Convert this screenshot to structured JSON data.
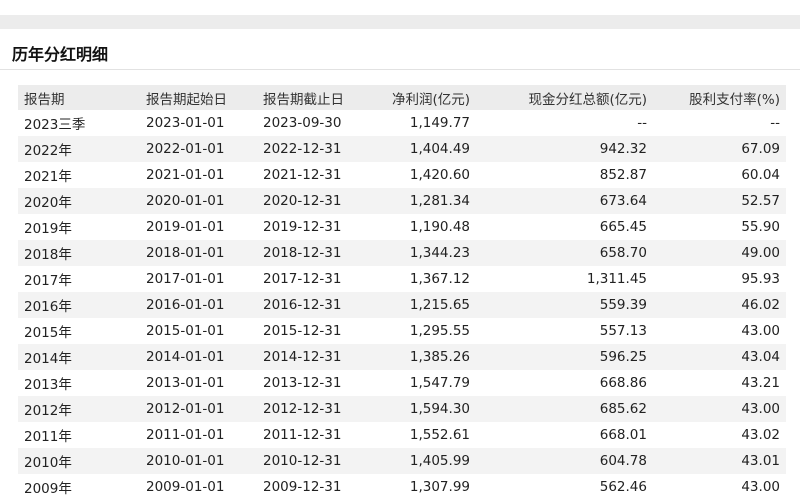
{
  "section_title": "历年分红明细",
  "table": {
    "headers": [
      "报告期",
      "报告期起始日",
      "报告期截止日",
      "净利润(亿元)",
      "现金分红总额(亿元)",
      "股利支付率(%)"
    ],
    "rows": [
      [
        "2023三季",
        "2023-01-01",
        "2023-09-30",
        "1,149.77",
        "--",
        "--"
      ],
      [
        "2022年",
        "2022-01-01",
        "2022-12-31",
        "1,404.49",
        "942.32",
        "67.09"
      ],
      [
        "2021年",
        "2021-01-01",
        "2021-12-31",
        "1,420.60",
        "852.87",
        "60.04"
      ],
      [
        "2020年",
        "2020-01-01",
        "2020-12-31",
        "1,281.34",
        "673.64",
        "52.57"
      ],
      [
        "2019年",
        "2019-01-01",
        "2019-12-31",
        "1,190.48",
        "665.45",
        "55.90"
      ],
      [
        "2018年",
        "2018-01-01",
        "2018-12-31",
        "1,344.23",
        "658.70",
        "49.00"
      ],
      [
        "2017年",
        "2017-01-01",
        "2017-12-31",
        "1,367.12",
        "1,311.45",
        "95.93"
      ],
      [
        "2016年",
        "2016-01-01",
        "2016-12-31",
        "1,215.65",
        "559.39",
        "46.02"
      ],
      [
        "2015年",
        "2015-01-01",
        "2015-12-31",
        "1,295.55",
        "557.13",
        "43.00"
      ],
      [
        "2014年",
        "2014-01-01",
        "2014-12-31",
        "1,385.26",
        "596.25",
        "43.04"
      ],
      [
        "2013年",
        "2013-01-01",
        "2013-12-31",
        "1,547.79",
        "668.86",
        "43.21"
      ],
      [
        "2012年",
        "2012-01-01",
        "2012-12-31",
        "1,594.30",
        "685.62",
        "43.00"
      ],
      [
        "2011年",
        "2011-01-01",
        "2011-12-31",
        "1,552.61",
        "668.01",
        "43.02"
      ],
      [
        "2010年",
        "2010-01-01",
        "2010-12-31",
        "1,405.99",
        "604.78",
        "43.01"
      ],
      [
        "2009年",
        "2009-01-01",
        "2009-12-31",
        "1,307.99",
        "562.46",
        "43.00"
      ]
    ]
  }
}
